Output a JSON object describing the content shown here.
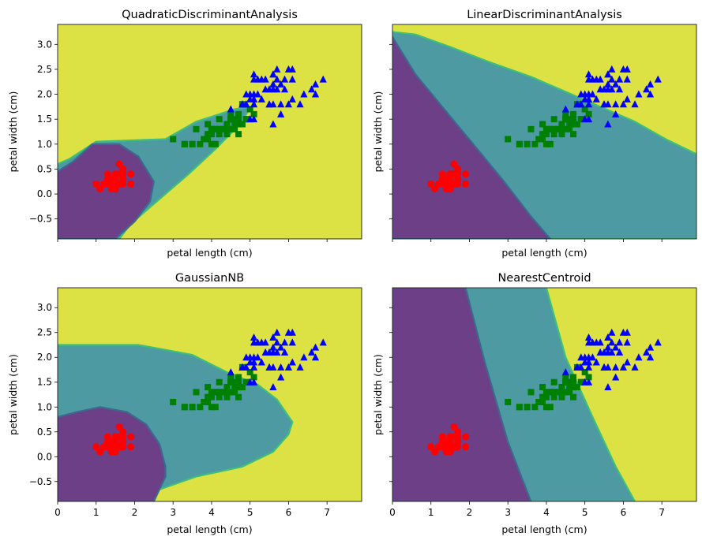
{
  "colors": {
    "class0": "#6c3f87",
    "class1": "#4e9aa3",
    "class2": "#dde244",
    "boundary_a": "#3a6b8f",
    "boundary_b": "#3fbf7a",
    "setosa": "#ff0000",
    "versicolor": "#008000",
    "virginica": "#0000ff"
  },
  "chart_data": [
    {
      "type": "scatter",
      "title": "QuadraticDiscriminantAnalysis",
      "xlabel": "petal length (cm)",
      "ylabel": "petal width (cm)",
      "xlim": [
        0.0,
        7.9
      ],
      "ylim": [
        -0.9,
        3.4
      ],
      "show_x_ticklabels": false,
      "show_y_ticklabels": true,
      "regions": [
        {
          "class": 1,
          "polygon": [
            [
              0,
              0.6
            ],
            [
              0.3,
              0.7
            ],
            [
              1.0,
              1.05
            ],
            [
              2.8,
              1.1
            ],
            [
              3.6,
              1.45
            ],
            [
              4.6,
              1.7
            ],
            [
              5.0,
              1.75
            ],
            [
              4.8,
              1.45
            ],
            [
              4.1,
              0.9
            ],
            [
              3.4,
              0.4
            ],
            [
              2.5,
              -0.2
            ],
            [
              1.9,
              -0.6
            ],
            [
              1.6,
              -0.9
            ],
            [
              0,
              -0.9
            ]
          ]
        },
        {
          "class": 0,
          "polygon": [
            [
              0,
              0.45
            ],
            [
              0.4,
              0.65
            ],
            [
              0.9,
              1.0
            ],
            [
              1.6,
              1.0
            ],
            [
              2.1,
              0.75
            ],
            [
              2.5,
              0.25
            ],
            [
              2.4,
              -0.15
            ],
            [
              2.0,
              -0.55
            ],
            [
              1.5,
              -0.9
            ],
            [
              0,
              -0.9
            ]
          ]
        }
      ]
    },
    {
      "type": "scatter",
      "title": "LinearDiscriminantAnalysis",
      "xlabel": "petal length (cm)",
      "ylabel": "petal width (cm)",
      "xlim": [
        0.0,
        7.9
      ],
      "ylim": [
        -0.9,
        3.4
      ],
      "show_x_ticklabels": false,
      "show_y_ticklabels": false,
      "regions": [
        {
          "class": 1,
          "polygon": [
            [
              0,
              3.25
            ],
            [
              0.6,
              3.2
            ],
            [
              1.5,
              2.95
            ],
            [
              2.5,
              2.65
            ],
            [
              3.6,
              2.35
            ],
            [
              4.5,
              2.05
            ],
            [
              5.4,
              1.75
            ],
            [
              6.3,
              1.45
            ],
            [
              7.1,
              1.1
            ],
            [
              7.9,
              0.8
            ],
            [
              7.9,
              -0.9
            ],
            [
              0,
              -0.9
            ]
          ]
        },
        {
          "class": 0,
          "polygon": [
            [
              0,
              3.15
            ],
            [
              0.6,
              2.4
            ],
            [
              1.4,
              1.65
            ],
            [
              2.1,
              1.0
            ],
            [
              2.9,
              0.25
            ],
            [
              3.6,
              -0.45
            ],
            [
              4.1,
              -0.9
            ],
            [
              0,
              -0.9
            ]
          ]
        }
      ]
    },
    {
      "type": "scatter",
      "title": "GaussianNB",
      "xlabel": "petal length (cm)",
      "ylabel": "petal width (cm)",
      "xlim": [
        0.0,
        7.9
      ],
      "ylim": [
        -0.9,
        3.4
      ],
      "show_x_ticklabels": true,
      "show_y_ticklabels": true,
      "regions": [
        {
          "class": 1,
          "polygon": [
            [
              0,
              2.25
            ],
            [
              2.1,
              2.25
            ],
            [
              3.5,
              2.05
            ],
            [
              4.4,
              1.7
            ],
            [
              5.2,
              1.45
            ],
            [
              5.7,
              1.15
            ],
            [
              6.1,
              0.7
            ],
            [
              6.0,
              0.45
            ],
            [
              5.6,
              0.1
            ],
            [
              4.8,
              -0.2
            ],
            [
              3.6,
              -0.4
            ],
            [
              2.5,
              -0.7
            ],
            [
              2.1,
              -0.9
            ],
            [
              0,
              -0.9
            ]
          ]
        },
        {
          "class": 0,
          "polygon": [
            [
              0,
              0.8
            ],
            [
              0.5,
              0.9
            ],
            [
              1.1,
              1.0
            ],
            [
              1.8,
              0.9
            ],
            [
              2.3,
              0.65
            ],
            [
              2.65,
              0.25
            ],
            [
              2.8,
              -0.2
            ],
            [
              2.8,
              -0.4
            ],
            [
              2.5,
              -0.9
            ],
            [
              0,
              -0.9
            ]
          ]
        }
      ]
    },
    {
      "type": "scatter",
      "title": "NearestCentroid",
      "xlabel": "petal length (cm)",
      "ylabel": "petal width (cm)",
      "xlim": [
        0.0,
        7.9
      ],
      "ylim": [
        -0.9,
        3.4
      ],
      "show_x_ticklabels": true,
      "show_y_ticklabels": false,
      "regions": [
        {
          "class": 1,
          "polygon": [
            [
              1.9,
              3.4
            ],
            [
              4.0,
              3.4
            ],
            [
              4.5,
              2.0
            ],
            [
              5.2,
              0.8
            ],
            [
              5.8,
              -0.2
            ],
            [
              6.3,
              -0.9
            ],
            [
              3.6,
              -0.9
            ],
            [
              3.0,
              0.3
            ],
            [
              2.4,
              1.9
            ]
          ]
        },
        {
          "class": 0,
          "polygon": [
            [
              0,
              3.4
            ],
            [
              1.9,
              3.4
            ],
            [
              2.4,
              1.9
            ],
            [
              3.0,
              0.3
            ],
            [
              3.6,
              -0.9
            ],
            [
              0,
              -0.9
            ]
          ]
        }
      ]
    }
  ],
  "classes": [
    {
      "marker": "circle",
      "points": [
        [
          1.4,
          0.2
        ],
        [
          1.4,
          0.2
        ],
        [
          1.3,
          0.2
        ],
        [
          1.5,
          0.2
        ],
        [
          1.4,
          0.2
        ],
        [
          1.7,
          0.4
        ],
        [
          1.4,
          0.3
        ],
        [
          1.5,
          0.2
        ],
        [
          1.4,
          0.2
        ],
        [
          1.5,
          0.1
        ],
        [
          1.5,
          0.2
        ],
        [
          1.6,
          0.2
        ],
        [
          1.4,
          0.1
        ],
        [
          1.1,
          0.1
        ],
        [
          1.2,
          0.2
        ],
        [
          1.5,
          0.4
        ],
        [
          1.3,
          0.4
        ],
        [
          1.4,
          0.3
        ],
        [
          1.7,
          0.3
        ],
        [
          1.5,
          0.3
        ],
        [
          1.7,
          0.2
        ],
        [
          1.5,
          0.4
        ],
        [
          1.0,
          0.2
        ],
        [
          1.7,
          0.5
        ],
        [
          1.9,
          0.2
        ],
        [
          1.6,
          0.2
        ],
        [
          1.6,
          0.4
        ],
        [
          1.5,
          0.2
        ],
        [
          1.4,
          0.2
        ],
        [
          1.6,
          0.2
        ],
        [
          1.6,
          0.2
        ],
        [
          1.5,
          0.4
        ],
        [
          1.5,
          0.1
        ],
        [
          1.4,
          0.2
        ],
        [
          1.5,
          0.2
        ],
        [
          1.2,
          0.2
        ],
        [
          1.3,
          0.2
        ],
        [
          1.4,
          0.1
        ],
        [
          1.3,
          0.2
        ],
        [
          1.5,
          0.2
        ],
        [
          1.3,
          0.3
        ],
        [
          1.3,
          0.3
        ],
        [
          1.3,
          0.2
        ],
        [
          1.6,
          0.6
        ],
        [
          1.9,
          0.4
        ],
        [
          1.4,
          0.3
        ],
        [
          1.6,
          0.2
        ],
        [
          1.4,
          0.2
        ],
        [
          1.5,
          0.2
        ],
        [
          1.4,
          0.2
        ]
      ]
    },
    {
      "marker": "square",
      "points": [
        [
          4.7,
          1.4
        ],
        [
          4.5,
          1.5
        ],
        [
          4.9,
          1.5
        ],
        [
          4.0,
          1.3
        ],
        [
          4.6,
          1.5
        ],
        [
          4.5,
          1.3
        ],
        [
          4.7,
          1.6
        ],
        [
          3.3,
          1.0
        ],
        [
          4.6,
          1.3
        ],
        [
          3.9,
          1.4
        ],
        [
          3.5,
          1.0
        ],
        [
          4.2,
          1.5
        ],
        [
          4.0,
          1.0
        ],
        [
          4.7,
          1.4
        ],
        [
          3.6,
          1.3
        ],
        [
          4.4,
          1.4
        ],
        [
          4.5,
          1.5
        ],
        [
          4.1,
          1.0
        ],
        [
          4.5,
          1.5
        ],
        [
          3.9,
          1.1
        ],
        [
          4.8,
          1.8
        ],
        [
          4.0,
          1.3
        ],
        [
          4.9,
          1.5
        ],
        [
          4.7,
          1.2
        ],
        [
          4.3,
          1.3
        ],
        [
          4.4,
          1.4
        ],
        [
          4.8,
          1.4
        ],
        [
          5.0,
          1.7
        ],
        [
          4.5,
          1.5
        ],
        [
          3.5,
          1.0
        ],
        [
          3.8,
          1.1
        ],
        [
          3.7,
          1.0
        ],
        [
          3.9,
          1.2
        ],
        [
          5.1,
          1.6
        ],
        [
          4.5,
          1.5
        ],
        [
          4.5,
          1.6
        ],
        [
          4.7,
          1.5
        ],
        [
          4.4,
          1.3
        ],
        [
          4.1,
          1.3
        ],
        [
          4.0,
          1.3
        ],
        [
          4.4,
          1.2
        ],
        [
          4.6,
          1.4
        ],
        [
          4.0,
          1.2
        ],
        [
          3.3,
          1.0
        ],
        [
          4.2,
          1.3
        ],
        [
          4.2,
          1.2
        ],
        [
          4.2,
          1.3
        ],
        [
          4.3,
          1.3
        ],
        [
          3.0,
          1.1
        ],
        [
          4.1,
          1.3
        ]
      ]
    },
    {
      "marker": "triangle",
      "points": [
        [
          6.0,
          2.5
        ],
        [
          5.1,
          1.9
        ],
        [
          5.9,
          2.1
        ],
        [
          5.6,
          1.8
        ],
        [
          5.8,
          2.2
        ],
        [
          6.6,
          2.1
        ],
        [
          4.5,
          1.7
        ],
        [
          6.3,
          1.8
        ],
        [
          5.8,
          1.8
        ],
        [
          6.1,
          2.5
        ],
        [
          5.1,
          2.0
        ],
        [
          5.3,
          1.9
        ],
        [
          5.5,
          2.1
        ],
        [
          5.0,
          2.0
        ],
        [
          5.1,
          2.4
        ],
        [
          5.3,
          2.3
        ],
        [
          5.5,
          1.8
        ],
        [
          6.7,
          2.2
        ],
        [
          6.9,
          2.3
        ],
        [
          5.0,
          1.5
        ],
        [
          5.7,
          2.3
        ],
        [
          4.9,
          2.0
        ],
        [
          6.7,
          2.0
        ],
        [
          4.9,
          1.8
        ],
        [
          5.7,
          2.1
        ],
        [
          6.0,
          1.8
        ],
        [
          4.8,
          1.8
        ],
        [
          4.9,
          1.8
        ],
        [
          5.6,
          2.1
        ],
        [
          5.8,
          1.6
        ],
        [
          6.1,
          1.9
        ],
        [
          6.4,
          2.0
        ],
        [
          5.6,
          2.2
        ],
        [
          5.1,
          1.5
        ],
        [
          5.6,
          1.4
        ],
        [
          6.1,
          2.3
        ],
        [
          5.6,
          2.4
        ],
        [
          5.5,
          1.8
        ],
        [
          4.8,
          1.8
        ],
        [
          5.4,
          2.1
        ],
        [
          5.6,
          2.4
        ],
        [
          5.1,
          2.3
        ],
        [
          5.1,
          1.9
        ],
        [
          5.9,
          2.3
        ],
        [
          5.7,
          2.5
        ],
        [
          5.2,
          2.3
        ],
        [
          5.0,
          1.9
        ],
        [
          5.2,
          2.0
        ],
        [
          5.4,
          2.3
        ],
        [
          5.1,
          1.8
        ]
      ]
    }
  ]
}
